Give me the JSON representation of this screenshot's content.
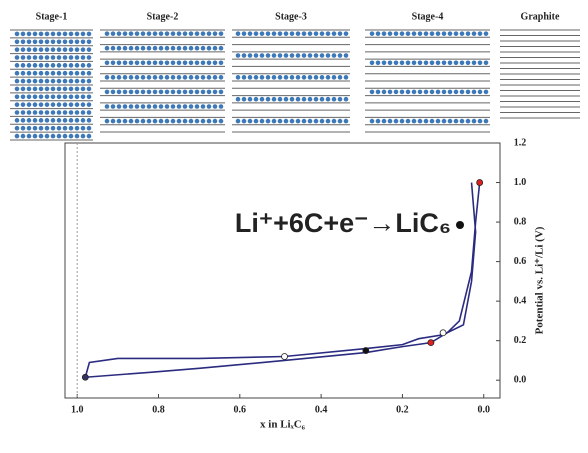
{
  "stages": [
    "Graphite",
    "Stage-4",
    "Stage-3",
    "Stage-2",
    "Stage-1"
  ],
  "chart_data": {
    "type": "line",
    "annotation": "Li⁺+6C+e⁻→LiC₆",
    "x_label": "x in LiₓC₆",
    "y_label": "Potential vs. Li⁺/Li (V)",
    "xlim": [
      -0.04,
      1.03
    ],
    "ylim": [
      -0.09,
      1.2
    ],
    "xticks": [
      {
        "value": 0,
        "label": "0.0"
      },
      0.2,
      0.4,
      0.6,
      0.8,
      {
        "value": 1,
        "label": "1.0"
      }
    ],
    "yticks": [
      {
        "value": 0,
        "label": "0.0"
      },
      0.2,
      0.4,
      0.6,
      0.8,
      {
        "value": 1,
        "label": "1.0"
      },
      1.2
    ],
    "series": [
      {
        "color": "#2b2b80",
        "x": [
          0.98,
          0.82,
          0.7,
          0.49,
          0.29,
          0.2,
          0.13,
          0.09,
          0.06,
          0.03,
          0.02,
          0.01
        ],
        "values": [
          0.015,
          0.04,
          0.06,
          0.1,
          0.14,
          0.17,
          0.19,
          0.24,
          0.3,
          0.55,
          0.8,
          1.0
        ]
      },
      {
        "color": "#2b2b80",
        "x": [
          0.03,
          0.02,
          0.03,
          0.05,
          0.1,
          0.16,
          0.2,
          0.29,
          0.49,
          0.7,
          0.9,
          0.97,
          0.98
        ],
        "values": [
          1.0,
          0.75,
          0.5,
          0.28,
          0.23,
          0.21,
          0.18,
          0.16,
          0.12,
          0.11,
          0.11,
          0.09,
          0.015
        ]
      }
    ],
    "markers": {
      "x": [
        0.98,
        0.49,
        0.29,
        0.13,
        0.1,
        0.01
      ],
      "values": [
        0.015,
        0.12,
        0.15,
        0.19,
        0.24,
        1.0
      ],
      "colors": [
        "#333366",
        "#ffffff",
        "#111111",
        "#e02020",
        "#ffffff",
        "#e02020"
      ]
    }
  }
}
